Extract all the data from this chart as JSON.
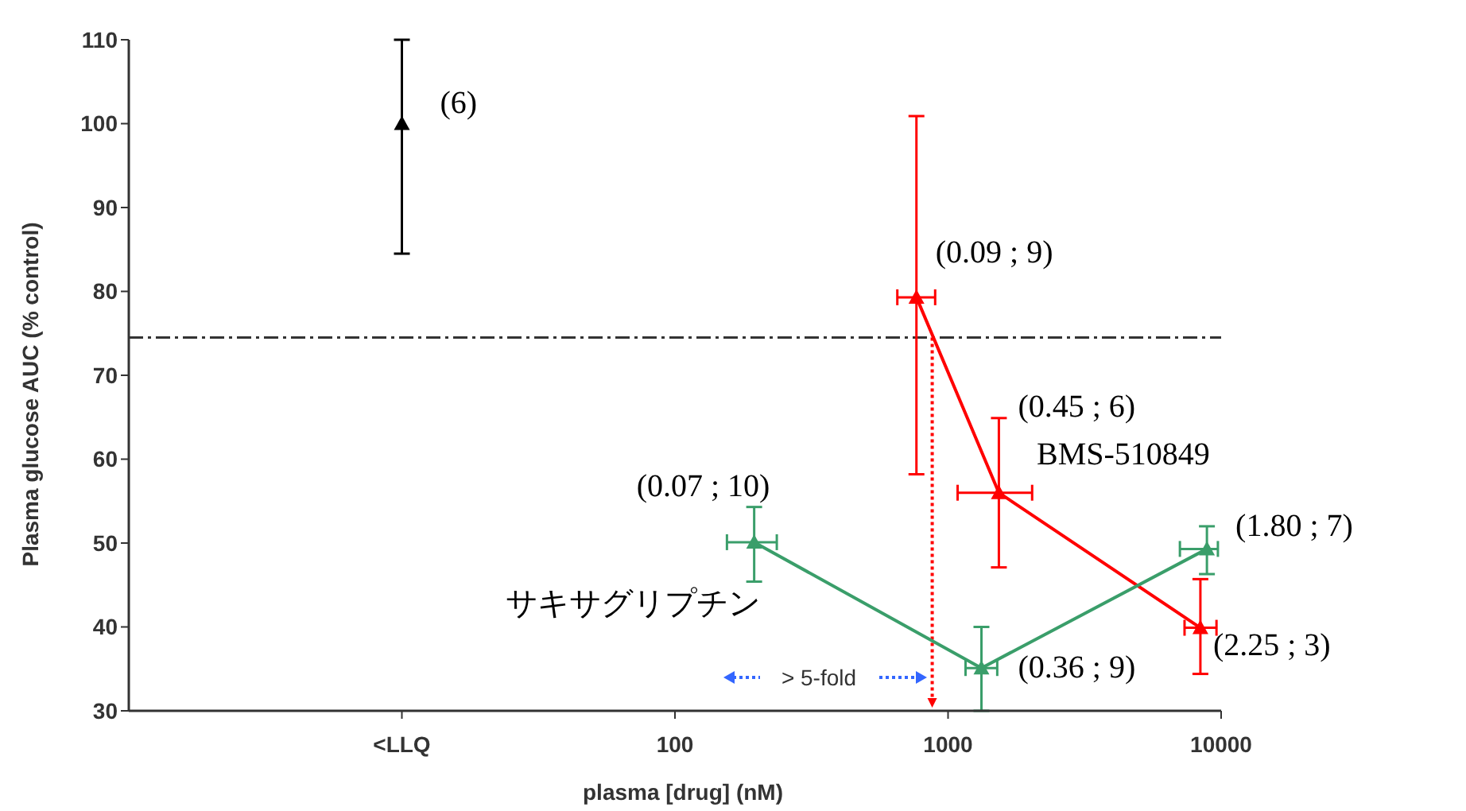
{
  "chart_data": {
    "type": "line",
    "xlabel": "plasma [drug] (nM)",
    "ylabel": "Plasma glucose AUC (% control)",
    "log": "x",
    "xlim": [
      1,
      10000
    ],
    "xticks": [
      {
        "value": 10,
        "label": "<LLQ"
      },
      100,
      1000,
      10000
    ],
    "ylim": [
      30,
      110
    ],
    "yticks": [
      30,
      40,
      50,
      60,
      70,
      80,
      90,
      100,
      110
    ],
    "marker": "triangle",
    "series": [
      {
        "type": "scatter",
        "color": "#000000",
        "x": [
          10
        ],
        "values": [
          100
        ],
        "errors": [
          [
            84.5,
            110
          ]
        ]
      },
      {
        "name": "BMS-510849",
        "color": "#ff0000",
        "x": [
          766,
          1535,
          8395
        ],
        "values": [
          79.3,
          56,
          39.9
        ],
        "errors": [
          [
            58.2,
            100.9
          ],
          [
            47.1,
            64.9
          ],
          [
            34.4,
            45.7
          ]
        ],
        "xerrors": [
          [
            652,
            897
          ],
          [
            1084,
            2032
          ],
          [
            7345,
            9616
          ]
        ]
      },
      {
        "name": "サキサグリプチン",
        "color": "#3a9e6a",
        "x": [
          195,
          1325,
          8870
        ],
        "values": [
          50.1,
          35.1,
          49.3
        ],
        "errors": [
          [
            45.4,
            54.3
          ],
          [
            30,
            40
          ],
          [
            46.3,
            52
          ]
        ],
        "xerrors": [
          [
            155,
            236
          ],
          [
            1159,
            1514
          ],
          [
            7063,
            9730
          ]
        ]
      }
    ],
    "ref_lines": [
      {
        "axis": "y",
        "value": 74.5,
        "color": "#333333",
        "line_style": "dashed"
      },
      {
        "axis": "x",
        "value": 875,
        "color": "#ff0000",
        "line_style": "dotted"
      }
    ],
    "annotations": [
      {
        "text": "(6)",
        "x": 10,
        "y": 100
      },
      {
        "text": "(0.09 ; 9)",
        "x": 766,
        "y": 79.3
      },
      {
        "text": "(0.45 ; 6)",
        "x": 1535,
        "y": 56
      },
      {
        "text": "(2.25 ; 3)",
        "x": 8395,
        "y": 39.9
      },
      {
        "text": "(0.07 ; 10)",
        "x": 195,
        "y": 50.1
      },
      {
        "text": "(0.36 ; 9)",
        "x": 1325,
        "y": 35.1
      },
      {
        "text": "(1.80 ; 7)",
        "x": 8870,
        "y": 49.3
      },
      "> 5-fold"
    ]
  }
}
